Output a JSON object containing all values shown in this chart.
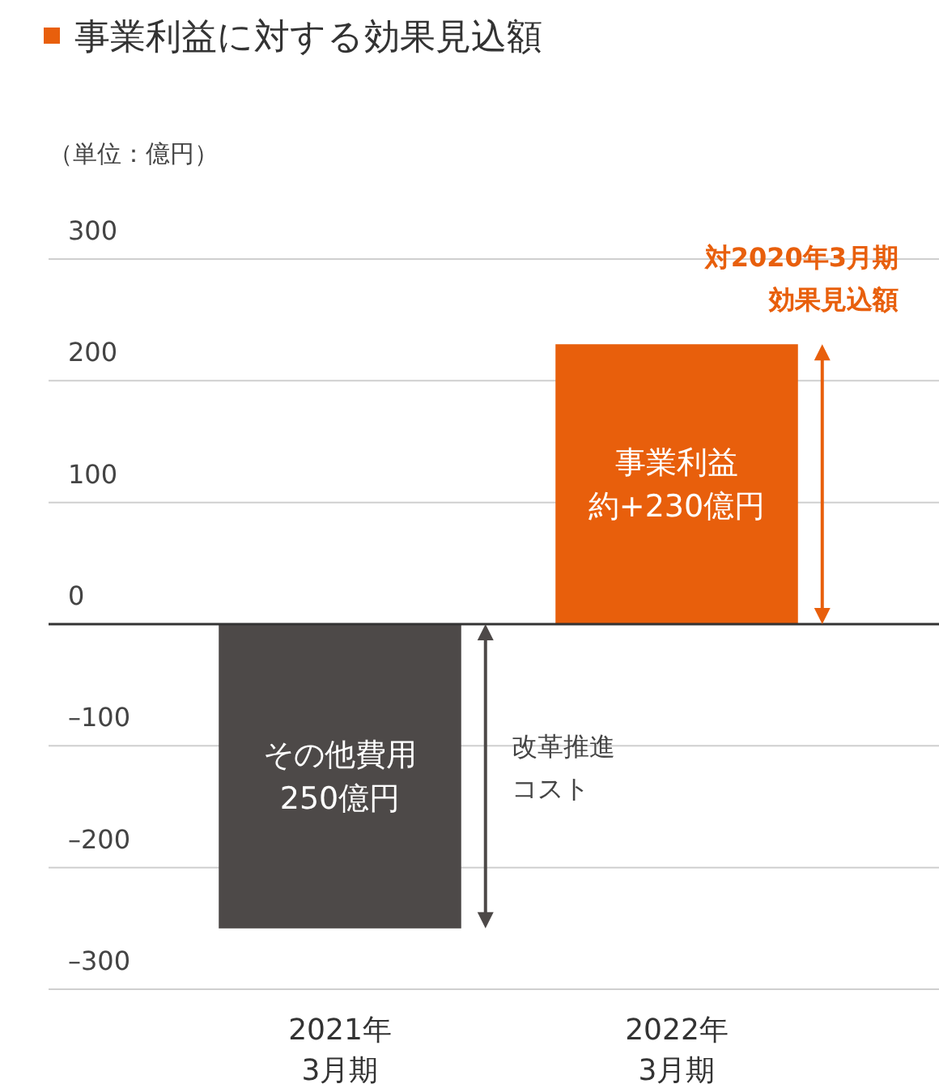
{
  "chart_data": {
    "type": "bar",
    "title": "事業利益に対する効果見込額",
    "ylabel": "（単位：億円）",
    "categories": [
      "2021年\n3月期",
      "2022年\n3月期"
    ],
    "values": [
      250,
      230
    ],
    "base": [
      -250,
      0
    ],
    "colors": [
      "#4d4948",
      "#e85f0c"
    ],
    "value_labels": [
      "250億円",
      "約+230億円"
    ],
    "ylim": [
      -300,
      300
    ],
    "yticks": [
      {
        "value": -300,
        "label": "–300"
      },
      {
        "value": -200,
        "label": "–200"
      },
      {
        "value": -100,
        "label": "–100"
      },
      0,
      100,
      200,
      300
    ],
    "grid": "y",
    "annotations": [
      "その他費用",
      "事業利益",
      "改革推進",
      "コスト",
      "対2020年3月期",
      "効果見込額"
    ]
  }
}
